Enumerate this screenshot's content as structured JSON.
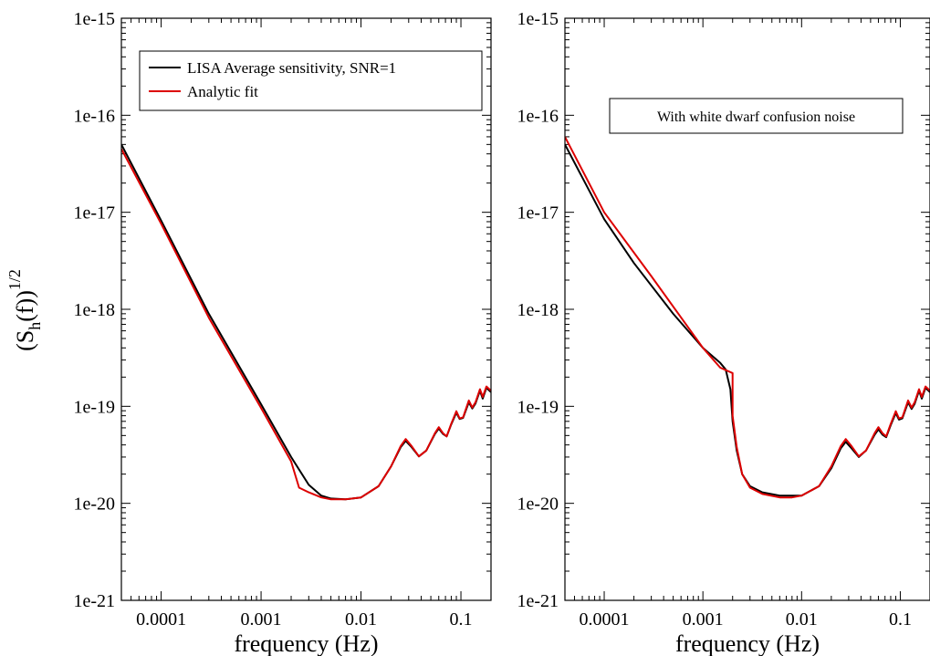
{
  "figure": {
    "ylabel_main": "(S",
    "ylabel_sub": "h",
    "ylabel_mid": "(f))",
    "ylabel_sup": "1/2"
  },
  "chart_data": [
    {
      "type": "line",
      "title": "",
      "xlabel": "frequency (Hz)",
      "ylabel": "(S_h(f))^1/2",
      "xscale": "log",
      "yscale": "log",
      "xlim": [
        4e-05,
        0.2
      ],
      "ylim": [
        1e-21,
        1e-15
      ],
      "xticks": [
        0.0001,
        0.001,
        0.01,
        0.1
      ],
      "xtick_labels": [
        "0.0001",
        "0.001",
        "0.01",
        "0.1"
      ],
      "yticks": [
        1e-21,
        1e-20,
        1e-19,
        1e-18,
        1e-17,
        1e-16,
        1e-15
      ],
      "ytick_labels": [
        "1e-21",
        "1e-20",
        "1e-19",
        "1e-18",
        "1e-17",
        "1e-16",
        "1e-15"
      ],
      "grid": false,
      "legend_position": "top-right",
      "legend": [
        {
          "label": "LISA Average sensitivity, SNR=1",
          "color": "#000000"
        },
        {
          "label": "Analytic fit",
          "color": "#dd0000"
        }
      ],
      "annotation": "",
      "series": [
        {
          "name": "LISA Average sensitivity, SNR=1",
          "color": "#000000",
          "points": [
            [
              4e-05,
              5e-17
            ],
            [
              0.0001,
              8.2e-18
            ],
            [
              0.0003,
              9e-19
            ],
            [
              0.001,
              1.05e-19
            ],
            [
              0.002,
              3e-20
            ],
            [
              0.003,
              1.55e-20
            ],
            [
              0.004,
              1.2e-20
            ],
            [
              0.005,
              1.12e-20
            ],
            [
              0.007,
              1.1e-20
            ],
            [
              0.01,
              1.15e-20
            ],
            [
              0.015,
              1.5e-20
            ],
            [
              0.02,
              2.4e-20
            ],
            [
              0.025,
              3.8e-20
            ],
            [
              0.028,
              4.4e-20
            ],
            [
              0.032,
              3.8e-20
            ],
            [
              0.038,
              3.05e-20
            ],
            [
              0.045,
              3.5e-20
            ],
            [
              0.055,
              5.2e-20
            ],
            [
              0.06,
              5.9e-20
            ],
            [
              0.066,
              5.2e-20
            ],
            [
              0.072,
              4.9e-20
            ],
            [
              0.08,
              6.5e-20
            ],
            [
              0.09,
              8.6e-20
            ],
            [
              0.097,
              7.4e-20
            ],
            [
              0.105,
              7.6e-20
            ],
            [
              0.12,
              1.1e-19
            ],
            [
              0.13,
              9.5e-20
            ],
            [
              0.14,
              1.07e-19
            ],
            [
              0.155,
              1.45e-19
            ],
            [
              0.165,
              1.2e-19
            ],
            [
              0.18,
              1.55e-19
            ],
            [
              0.2,
              1.4e-19
            ]
          ]
        },
        {
          "name": "Analytic fit",
          "color": "#dd0000",
          "points": [
            [
              4e-05,
              4.5e-17
            ],
            [
              0.0001,
              7.6e-18
            ],
            [
              0.0003,
              8.2e-19
            ],
            [
              0.001,
              9.6e-20
            ],
            [
              0.002,
              2.7e-20
            ],
            [
              0.0024,
              1.45e-20
            ],
            [
              0.003,
              1.3e-20
            ],
            [
              0.004,
              1.15e-20
            ],
            [
              0.005,
              1.1e-20
            ],
            [
              0.007,
              1.1e-20
            ],
            [
              0.01,
              1.15e-20
            ],
            [
              0.015,
              1.5e-20
            ],
            [
              0.02,
              2.4e-20
            ],
            [
              0.025,
              3.9e-20
            ],
            [
              0.028,
              4.6e-20
            ],
            [
              0.032,
              3.9e-20
            ],
            [
              0.038,
              3.05e-20
            ],
            [
              0.045,
              3.5e-20
            ],
            [
              0.055,
              5.3e-20
            ],
            [
              0.06,
              6.1e-20
            ],
            [
              0.066,
              5.3e-20
            ],
            [
              0.072,
              4.9e-20
            ],
            [
              0.08,
              6.6e-20
            ],
            [
              0.09,
              8.9e-20
            ],
            [
              0.097,
              7.5e-20
            ],
            [
              0.105,
              7.7e-20
            ],
            [
              0.12,
              1.15e-19
            ],
            [
              0.13,
              9.7e-20
            ],
            [
              0.14,
              1.1e-19
            ],
            [
              0.155,
              1.5e-19
            ],
            [
              0.165,
              1.25e-19
            ],
            [
              0.18,
              1.6e-19
            ],
            [
              0.2,
              1.45e-19
            ]
          ]
        }
      ]
    },
    {
      "type": "line",
      "title": "",
      "xlabel": "frequency (Hz)",
      "ylabel": "",
      "xscale": "log",
      "yscale": "log",
      "xlim": [
        4e-05,
        0.2
      ],
      "ylim": [
        1e-21,
        1e-15
      ],
      "xticks": [
        0.0001,
        0.001,
        0.01,
        0.1
      ],
      "xtick_labels": [
        "0.0001",
        "0.001",
        "0.01",
        "0.1"
      ],
      "yticks": [
        1e-21,
        1e-20,
        1e-19,
        1e-18,
        1e-17,
        1e-16,
        1e-15
      ],
      "ytick_labels": [
        "1e-21",
        "1e-20",
        "1e-19",
        "1e-18",
        "1e-17",
        "1e-16",
        "1e-15"
      ],
      "grid": false,
      "legend_position": "none",
      "legend": [],
      "annotation": "With white dwarf confusion noise",
      "series": [
        {
          "name": "",
          "color": "#000000",
          "points": [
            [
              4e-05,
              5e-17
            ],
            [
              0.0001,
              8.5e-18
            ],
            [
              0.0002,
              3e-18
            ],
            [
              0.0005,
              9e-19
            ],
            [
              0.001,
              4e-19
            ],
            [
              0.0015,
              2.8e-19
            ],
            [
              0.0017,
              2.4e-19
            ],
            [
              0.0019,
              1.5e-19
            ],
            [
              0.002,
              7e-20
            ],
            [
              0.0022,
              3.5e-20
            ],
            [
              0.0025,
              2e-20
            ],
            [
              0.003,
              1.5e-20
            ],
            [
              0.004,
              1.3e-20
            ],
            [
              0.006,
              1.2e-20
            ],
            [
              0.008,
              1.2e-20
            ],
            [
              0.01,
              1.2e-20
            ],
            [
              0.015,
              1.5e-20
            ],
            [
              0.02,
              2.3e-20
            ],
            [
              0.025,
              3.7e-20
            ],
            [
              0.028,
              4.3e-20
            ],
            [
              0.032,
              3.7e-20
            ],
            [
              0.038,
              3e-20
            ],
            [
              0.045,
              3.5e-20
            ],
            [
              0.055,
              5.1e-20
            ],
            [
              0.06,
              5.8e-20
            ],
            [
              0.066,
              5.1e-20
            ],
            [
              0.072,
              4.8e-20
            ],
            [
              0.08,
              6.4e-20
            ],
            [
              0.09,
              8.5e-20
            ],
            [
              0.097,
              7.3e-20
            ],
            [
              0.105,
              7.5e-20
            ],
            [
              0.12,
              1.1e-19
            ],
            [
              0.13,
              9.4e-20
            ],
            [
              0.14,
              1.06e-19
            ],
            [
              0.155,
              1.45e-19
            ],
            [
              0.165,
              1.2e-19
            ],
            [
              0.18,
              1.55e-19
            ],
            [
              0.2,
              1.4e-19
            ]
          ]
        },
        {
          "name": "",
          "color": "#dd0000",
          "points": [
            [
              4e-05,
              6e-17
            ],
            [
              0.0001,
              1e-17
            ],
            [
              0.0003,
              2.2e-18
            ],
            [
              0.001,
              4e-19
            ],
            [
              0.0015,
              2.5e-19
            ],
            [
              0.002,
              2.2e-19
            ],
            [
              0.002,
              8e-20
            ],
            [
              0.0022,
              3.8e-20
            ],
            [
              0.0025,
              2e-20
            ],
            [
              0.003,
              1.45e-20
            ],
            [
              0.004,
              1.25e-20
            ],
            [
              0.006,
              1.15e-20
            ],
            [
              0.008,
              1.15e-20
            ],
            [
              0.01,
              1.2e-20
            ],
            [
              0.015,
              1.5e-20
            ],
            [
              0.02,
              2.4e-20
            ],
            [
              0.025,
              3.9e-20
            ],
            [
              0.028,
              4.6e-20
            ],
            [
              0.032,
              3.9e-20
            ],
            [
              0.038,
              3.05e-20
            ],
            [
              0.045,
              3.5e-20
            ],
            [
              0.055,
              5.3e-20
            ],
            [
              0.06,
              6.1e-20
            ],
            [
              0.066,
              5.3e-20
            ],
            [
              0.072,
              4.9e-20
            ],
            [
              0.08,
              6.6e-20
            ],
            [
              0.09,
              8.9e-20
            ],
            [
              0.097,
              7.5e-20
            ],
            [
              0.105,
              7.7e-20
            ],
            [
              0.12,
              1.15e-19
            ],
            [
              0.13,
              9.7e-20
            ],
            [
              0.14,
              1.1e-19
            ],
            [
              0.155,
              1.5e-19
            ],
            [
              0.165,
              1.25e-19
            ],
            [
              0.18,
              1.6e-19
            ],
            [
              0.2,
              1.45e-19
            ]
          ]
        }
      ]
    }
  ]
}
